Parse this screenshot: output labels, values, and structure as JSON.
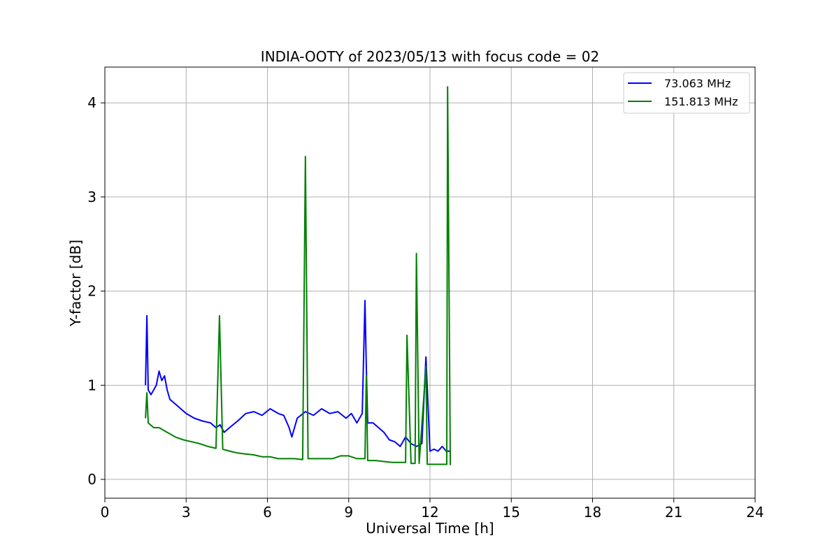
{
  "chart_data": {
    "type": "line",
    "title": "INDIA-OOTY of 2023/05/13 with focus code = 02",
    "xlabel": "Universal Time [h]",
    "ylabel": "Y-factor [dB]",
    "xlim": [
      0,
      24
    ],
    "ylim": [
      -0.2,
      4.38
    ],
    "xticks": [
      0,
      3,
      6,
      9,
      12,
      15,
      18,
      21,
      24
    ],
    "xtick_labels": [
      "0",
      "3",
      "6",
      "9",
      "12",
      "15",
      "18",
      "21",
      "24"
    ],
    "yticks": [
      0,
      1,
      2,
      3,
      4
    ],
    "ytick_labels": [
      "0",
      "1",
      "2",
      "3",
      "4"
    ],
    "grid": true,
    "legend_position": "top-right",
    "series": [
      {
        "name": "73.063 MHz",
        "legend_label": "  73.063 MHz",
        "color": "#0000ff",
        "x": [
          1.5,
          1.55,
          1.6,
          1.7,
          1.8,
          1.9,
          2.0,
          2.1,
          2.2,
          2.3,
          2.4,
          2.6,
          2.8,
          3.0,
          3.3,
          3.6,
          3.9,
          4.1,
          4.25,
          4.4,
          4.6,
          4.9,
          5.2,
          5.5,
          5.8,
          6.1,
          6.4,
          6.6,
          6.8,
          6.9,
          7.1,
          7.4,
          7.7,
          8.0,
          8.3,
          8.6,
          8.9,
          9.1,
          9.3,
          9.5,
          9.6,
          9.65,
          9.7,
          9.9,
          10.1,
          10.3,
          10.5,
          10.7,
          10.9,
          11.1,
          11.3,
          11.5,
          11.7,
          11.85,
          12.0,
          12.15,
          12.3,
          12.45,
          12.6,
          12.75
        ],
        "y": [
          1.0,
          1.74,
          0.95,
          0.9,
          0.95,
          1.0,
          1.15,
          1.05,
          1.1,
          0.95,
          0.85,
          0.8,
          0.75,
          0.7,
          0.65,
          0.62,
          0.6,
          0.55,
          0.58,
          0.5,
          0.55,
          0.62,
          0.7,
          0.72,
          0.68,
          0.75,
          0.7,
          0.68,
          0.55,
          0.45,
          0.65,
          0.72,
          0.68,
          0.75,
          0.7,
          0.72,
          0.65,
          0.7,
          0.6,
          0.7,
          1.9,
          1.2,
          0.6,
          0.6,
          0.55,
          0.5,
          0.42,
          0.4,
          0.35,
          0.45,
          0.38,
          0.35,
          0.38,
          1.3,
          0.3,
          0.32,
          0.3,
          0.35,
          0.3,
          0.3
        ]
      },
      {
        "name": "151.813 MHz",
        "legend_label": "151.813 MHz",
        "color": "#008000",
        "x": [
          1.5,
          1.55,
          1.6,
          1.8,
          2.0,
          2.3,
          2.6,
          2.9,
          3.2,
          3.5,
          3.8,
          4.1,
          4.23,
          4.35,
          4.6,
          4.9,
          5.2,
          5.5,
          5.8,
          6.1,
          6.4,
          6.7,
          7.0,
          7.3,
          7.4,
          7.5,
          7.8,
          8.1,
          8.4,
          8.7,
          9.0,
          9.3,
          9.6,
          9.65,
          9.7,
          10.0,
          10.3,
          10.6,
          10.9,
          11.1,
          11.15,
          11.3,
          11.45,
          11.5,
          11.6,
          11.85,
          11.9,
          12.1,
          12.3,
          12.5,
          12.62,
          12.65,
          12.75
        ],
        "y": [
          0.65,
          0.92,
          0.6,
          0.55,
          0.55,
          0.5,
          0.45,
          0.42,
          0.4,
          0.38,
          0.35,
          0.33,
          1.74,
          0.32,
          0.3,
          0.28,
          0.27,
          0.26,
          0.24,
          0.24,
          0.22,
          0.22,
          0.22,
          0.21,
          3.43,
          0.22,
          0.22,
          0.22,
          0.22,
          0.25,
          0.25,
          0.22,
          0.22,
          1.1,
          0.2,
          0.2,
          0.19,
          0.18,
          0.18,
          0.18,
          1.53,
          0.17,
          0.17,
          2.4,
          0.17,
          1.2,
          0.16,
          0.16,
          0.16,
          0.16,
          0.16,
          4.17,
          0.15
        ]
      }
    ]
  }
}
